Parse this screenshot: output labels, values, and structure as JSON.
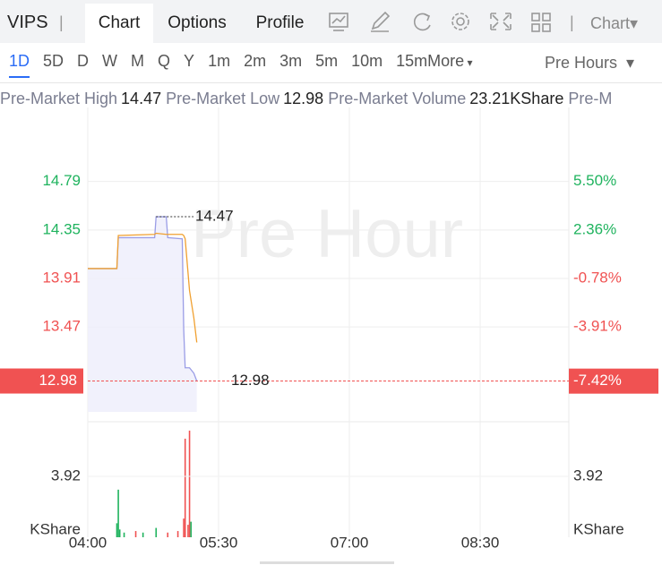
{
  "header": {
    "symbol": "VIPS",
    "tabs": [
      "Chart",
      "Options",
      "Profile"
    ],
    "chart_menu": "Chart"
  },
  "periods": [
    "1D",
    "5D",
    "D",
    "W",
    "M",
    "Q",
    "Y",
    "1m",
    "2m",
    "3m",
    "5m",
    "10m",
    "15m",
    "More"
  ],
  "session": "Pre Hours",
  "stats": [
    {
      "label": "Pre-Market High",
      "value": "14.47"
    },
    {
      "label": "Pre-Market Low",
      "value": "12.98"
    },
    {
      "label": "Pre-Market Volume",
      "value": "23.21KShare"
    },
    {
      "label": "Pre-M"
    }
  ],
  "chart_data": [
    {
      "type": "line",
      "watermark": "Pre Hour",
      "x": [
        "04:00",
        "04:20",
        "04:21",
        "04:46",
        "04:47",
        "04:54",
        "04:55",
        "05:05",
        "05:06",
        "05:07",
        "05:10",
        "05:13",
        "05:15"
      ],
      "series": [
        {
          "color": "#9a9de6",
          "values": [
            14.0,
            14.0,
            14.28,
            14.28,
            14.47,
            14.47,
            14.28,
            14.27,
            13.45,
            13.1,
            13.1,
            13.05,
            12.98
          ]
        },
        {
          "color": "#f0a030",
          "values": [
            14.0,
            14.0,
            14.3,
            14.31,
            14.32,
            14.31,
            14.31,
            14.31,
            14.3,
            14.27,
            13.8,
            13.55,
            13.33
          ]
        }
      ],
      "xlim": [
        "04:00",
        "09:31"
      ],
      "xticks": [
        "04:00",
        "05:30",
        "07:00",
        "08:30"
      ],
      "ylim": [
        12.7,
        15.38
      ],
      "yticks": [
        14.79,
        14.35,
        13.91,
        13.47
      ],
      "y2lim": [
        -9.41,
        9.71
      ],
      "y2ticks": [
        {
          "value": 5.5,
          "label": "5.50%"
        },
        {
          "value": 2.36,
          "label": "2.36%"
        },
        {
          "value": -0.78,
          "label": "-0.78%"
        },
        {
          "value": -3.91,
          "label": "-3.91%"
        }
      ],
      "high": 14.47,
      "last_price": 12.98,
      "last_change": {
        "value": -7.42,
        "label": "-7.42%"
      },
      "up_color": "#1fb35e",
      "down_color": "#f05252",
      "grid": true
    },
    {
      "type": "bar",
      "unit": "KShare",
      "x": [
        "04:20",
        "04:21",
        "04:22",
        "04:25",
        "04:33",
        "04:38",
        "04:47",
        "04:55",
        "05:02",
        "05:06",
        "05:07",
        "05:09",
        "05:10",
        "05:11"
      ],
      "values": [
        0.9,
        3.06,
        0.5,
        0.3,
        0.4,
        0.3,
        0.6,
        0.3,
        0.4,
        1.2,
        6.34,
        0.8,
        6.86,
        1.0
      ],
      "colors": [
        "#1fb35e",
        "#1fb35e",
        "#1fb35e",
        "#1fb35e",
        "#f05252",
        "#1fb35e",
        "#1fb35e",
        "#f05252",
        "#f05252",
        "#f05252",
        "#f05252",
        "#f05252",
        "#f05252",
        "#1fb35e"
      ],
      "ylim": [
        0,
        7.2
      ],
      "yticks": [
        3.92
      ]
    }
  ]
}
